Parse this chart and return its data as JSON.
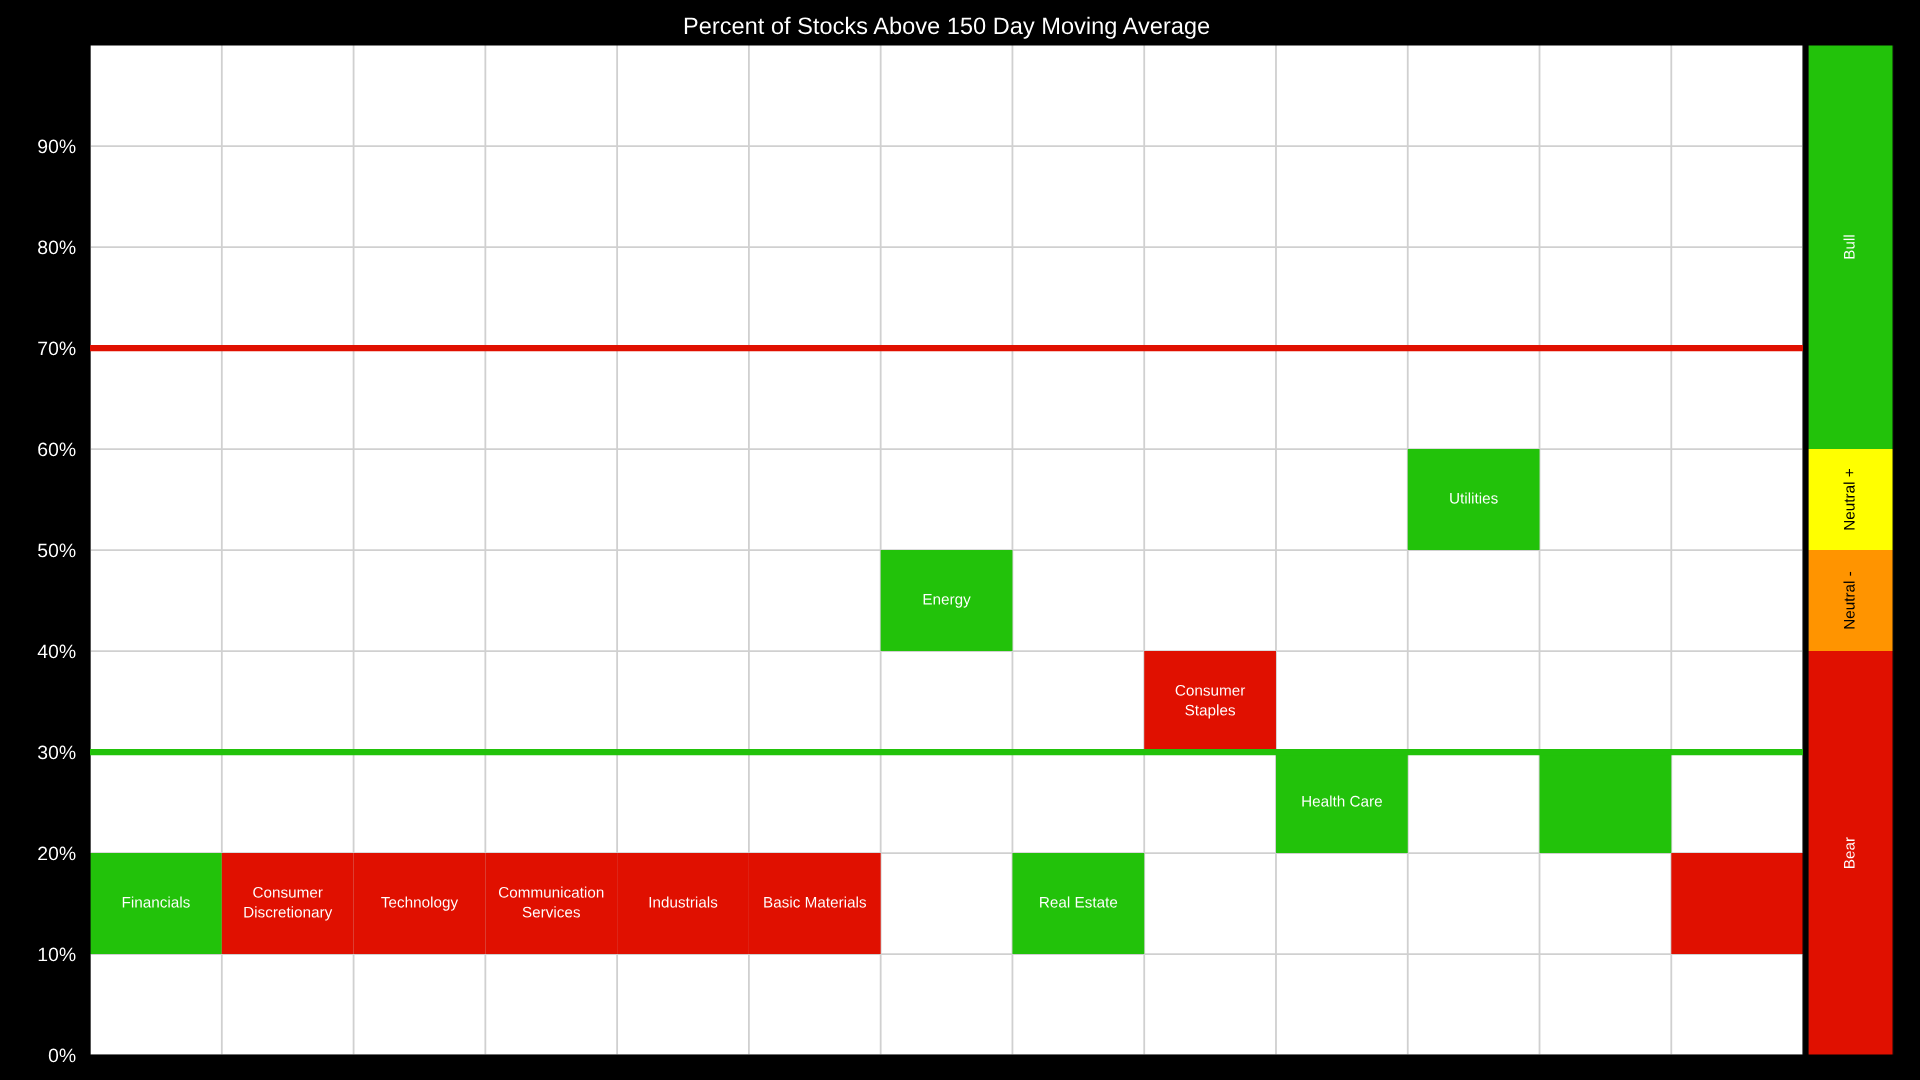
{
  "chart_data": [
    {
      "type": "bar",
      "title": "Percent of Stocks Above 150 Day Moving Average",
      "categories": [
        "Financials",
        "Consumer Discretionary",
        "Technology",
        "Communication Services",
        "Industrials",
        "Basic Materials",
        "Energy",
        "Real Estate",
        "Consumer Staples",
        "Health Care",
        "Utilities",
        null,
        null
      ],
      "values": [
        10,
        10,
        10,
        10,
        10,
        10,
        10,
        10,
        10,
        10,
        10,
        10,
        10
      ],
      "base": [
        10,
        10,
        10,
        10,
        10,
        10,
        40,
        10,
        30,
        20,
        50,
        20,
        10
      ],
      "colors": [
        "#22c20a",
        "#e01000",
        "#e01000",
        "#e01000",
        "#e01000",
        "#e01000",
        "#22c20a",
        "#22c20a",
        "#e01000",
        "#22c20a",
        "#22c20a",
        "#22c20a",
        "#e01000"
      ],
      "ylim": [
        0,
        100
      ],
      "yticks": [
        {
          "value": 0,
          "label": "0%"
        },
        {
          "value": 10,
          "label": "10%"
        },
        {
          "value": 20,
          "label": "20%"
        },
        {
          "value": 30,
          "label": "30%"
        },
        {
          "value": 40,
          "label": "40%"
        },
        {
          "value": 50,
          "label": "50%"
        },
        {
          "value": 60,
          "label": "60%"
        },
        {
          "value": 70,
          "label": "70%"
        },
        {
          "value": 80,
          "label": "80%"
        },
        {
          "value": 90,
          "label": "90%"
        }
      ],
      "grid": true,
      "tick_labels": "y",
      "ref_lines": [
        {
          "axis": "y",
          "value": 70,
          "color": "#e01000"
        },
        {
          "axis": "y",
          "value": 30,
          "color": "#22c20a"
        }
      ]
    },
    {
      "type": "bar",
      "stacked": true,
      "categories": [
        null
      ],
      "series": [
        {
          "name": "Bear",
          "color": "#e01000",
          "values": [
            40
          ]
        },
        {
          "name": "Neutral -",
          "color": "#ff9400",
          "values": [
            10
          ]
        },
        {
          "name": "Neutral +",
          "color": "#ffff00",
          "values": [
            10
          ]
        },
        {
          "name": "Bull",
          "color": "#22c20a",
          "values": [
            40
          ]
        }
      ],
      "ylim": [
        0,
        100
      ],
      "tick_labels": false
    }
  ]
}
